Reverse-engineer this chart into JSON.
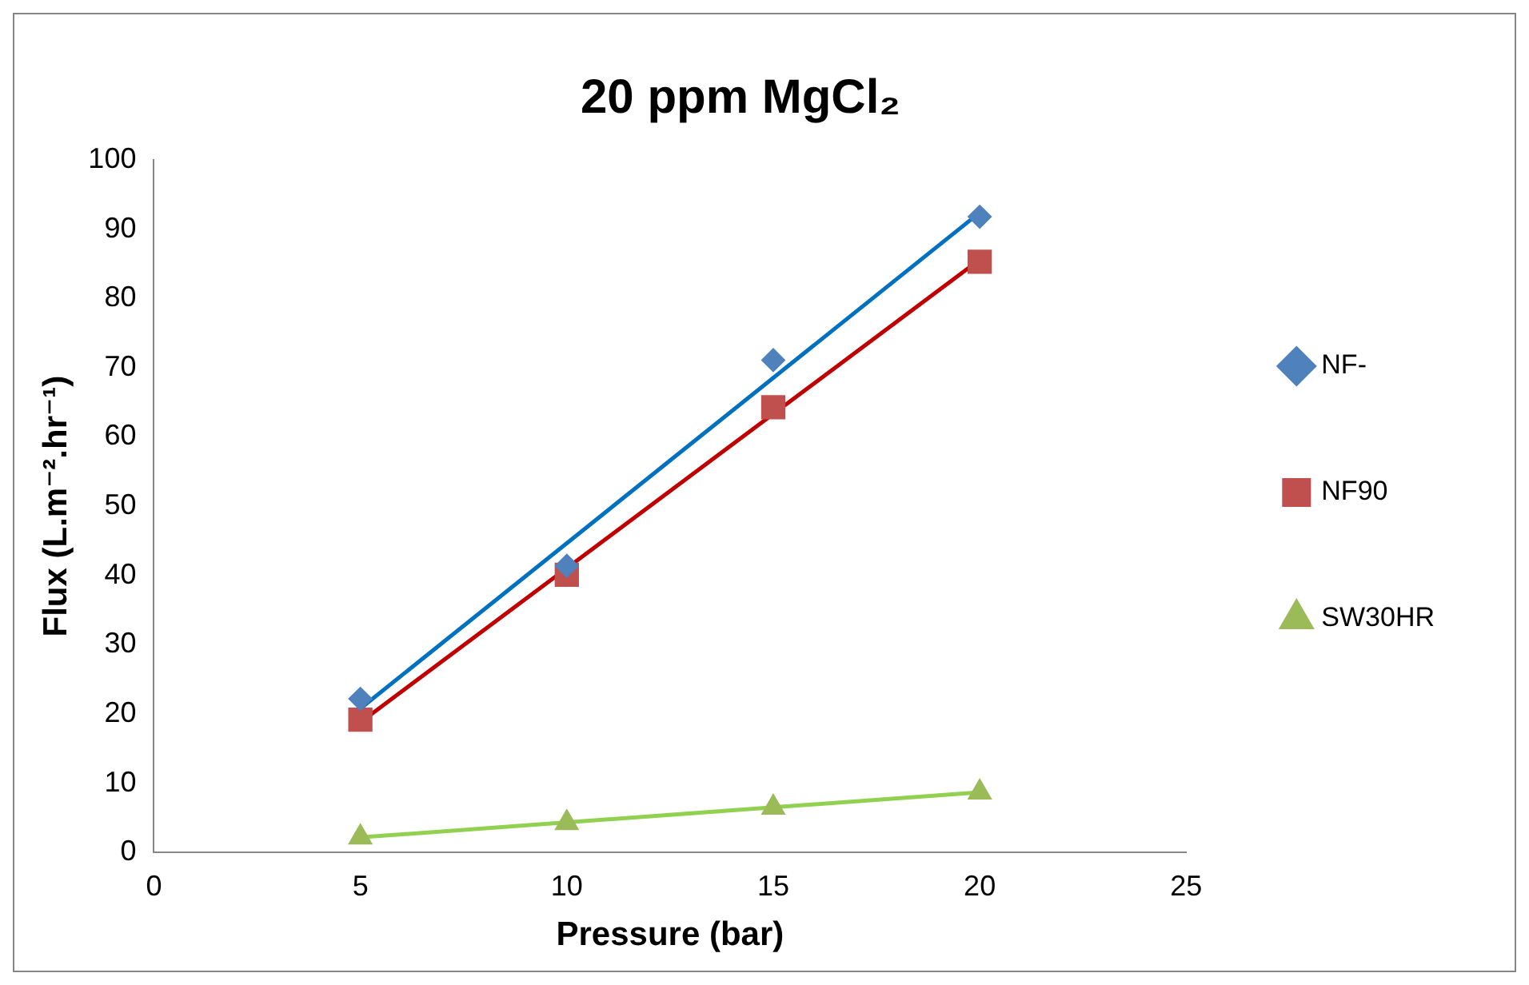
{
  "chart_data": {
    "type": "scatter",
    "title": "20 ppm MgCl₂",
    "xlabel": "Pressure (bar)",
    "ylabel": "Flux (L.m⁻².hr⁻¹)",
    "xlim": [
      0,
      25
    ],
    "xticks": [
      0,
      5,
      10,
      15,
      20,
      25
    ],
    "ylim": [
      0,
      100
    ],
    "yticks": [
      0,
      10,
      20,
      30,
      40,
      50,
      60,
      70,
      80,
      90,
      100
    ],
    "grid": false,
    "legend": "right",
    "series": [
      {
        "name": "NF-",
        "type": "scatter",
        "marker": "diamond",
        "color": "#4f81bd",
        "x": [
          5,
          10,
          15,
          20
        ],
        "values": [
          22.2,
          41.4,
          71.1,
          91.8
        ]
      },
      {
        "name": "NF90",
        "type": "scatter",
        "marker": "square",
        "color": "#c0504d",
        "x": [
          5,
          10,
          15,
          20
        ],
        "values": [
          19.2,
          40.1,
          64.3,
          85.3
        ]
      },
      {
        "name": "SW30HR",
        "type": "scatter",
        "marker": "triangle",
        "color": "#9bbb59",
        "x": [
          5,
          10,
          15,
          20
        ],
        "values": [
          2.2,
          4.3,
          6.5,
          8.7
        ]
      },
      {
        "type": "line",
        "marker": "none",
        "color": "#0070c0",
        "x": [
          5,
          20
        ],
        "values": [
          20.8,
          92.4
        ]
      },
      {
        "type": "line",
        "marker": "none",
        "color": "#c00000",
        "x": [
          5,
          20
        ],
        "values": [
          18.8,
          85.6
        ]
      },
      {
        "type": "line",
        "marker": "none",
        "color": "#92d050",
        "x": [
          5,
          20
        ],
        "values": [
          2.2,
          8.7
        ]
      }
    ]
  }
}
